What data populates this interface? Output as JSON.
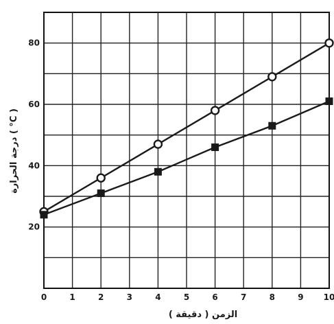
{
  "chart_data": {
    "type": "line",
    "title": "",
    "xlabel": "الزمن ( دقيقة )",
    "ylabel": "درجة الحرارة ( °C )",
    "xlim": [
      0,
      10
    ],
    "ylim": [
      0,
      90
    ],
    "grid": true,
    "legend": "none",
    "x_ticks": [
      "0",
      "1",
      "2",
      "3",
      "4",
      "5",
      "6",
      "7",
      "8",
      "9",
      "10"
    ],
    "y_ticks": [
      "20",
      "40",
      "60",
      "80"
    ],
    "x_tick_values": [
      0,
      1,
      2,
      3,
      4,
      5,
      6,
      7,
      8,
      9,
      10
    ],
    "y_tick_values": [
      20,
      40,
      60,
      80
    ],
    "series": [
      {
        "marker": "circle",
        "color": "#1a1a1a",
        "points": [
          [
            0,
            25
          ],
          [
            2,
            36
          ],
          [
            4,
            47
          ],
          [
            6,
            58
          ],
          [
            8,
            69
          ],
          [
            10,
            80
          ]
        ]
      },
      {
        "marker": "square",
        "color": "#1a1a1a",
        "points": [
          [
            0,
            24
          ],
          [
            2,
            31
          ],
          [
            4,
            38
          ],
          [
            6,
            46
          ],
          [
            8,
            53
          ],
          [
            10,
            61
          ]
        ]
      }
    ]
  }
}
